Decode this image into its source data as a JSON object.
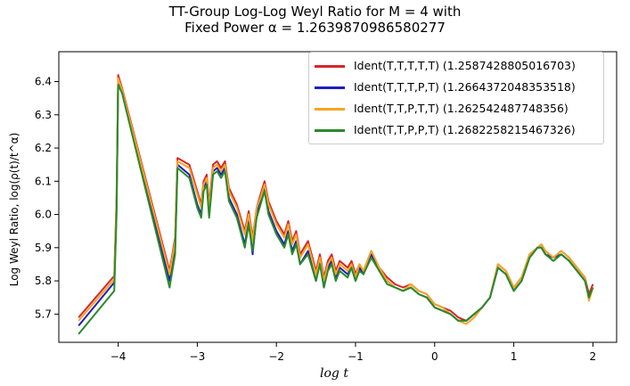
{
  "chart_data": {
    "type": "line",
    "title": "TT-Group Log-Log Weyl Ratio for M = 4 with",
    "subtitle": "Fixed Power α = 1.2639870986580277",
    "xlabel": "log t",
    "ylabel": "Log Weyl Ratio, log(ρ(t)/t^α)",
    "xlim": [
      -4.75,
      2.3
    ],
    "ylim": [
      5.615,
      6.49
    ],
    "xticks": [
      "−4",
      "−3",
      "−2",
      "−1",
      "0",
      "1",
      "2"
    ],
    "xtick_values": [
      -4,
      -3,
      -2,
      -1,
      0,
      1,
      2
    ],
    "yticks": [
      "5.7",
      "5.8",
      "5.9",
      "6.0",
      "6.1",
      "6.2",
      "6.3",
      "6.4"
    ],
    "ytick_values": [
      5.7,
      5.8,
      5.9,
      6.0,
      6.1,
      6.2,
      6.3,
      6.4
    ],
    "grid": false,
    "legend_position": "top-right",
    "series": [
      {
        "name": "Ident(T,T,T,T,T) (1.2587428805016703)",
        "color": "#d62728",
        "points": [
          [
            -4.5,
            5.69
          ],
          [
            -4.05,
            5.815
          ],
          [
            -4.02,
            6.05
          ],
          [
            -4.0,
            6.42
          ],
          [
            -3.95,
            6.38
          ],
          [
            -3.35,
            5.83
          ],
          [
            -3.28,
            5.93
          ],
          [
            -3.25,
            6.17
          ],
          [
            -3.1,
            6.15
          ],
          [
            -3.0,
            6.07
          ],
          [
            -2.95,
            6.03
          ],
          [
            -2.92,
            6.1
          ],
          [
            -2.88,
            6.12
          ],
          [
            -2.85,
            6.03
          ],
          [
            -2.8,
            6.15
          ],
          [
            -2.75,
            6.16
          ],
          [
            -2.7,
            6.14
          ],
          [
            -2.65,
            6.16
          ],
          [
            -2.6,
            6.08
          ],
          [
            -2.5,
            6.03
          ],
          [
            -2.4,
            5.95
          ],
          [
            -2.35,
            6.01
          ],
          [
            -2.3,
            5.93
          ],
          [
            -2.25,
            6.02
          ],
          [
            -2.2,
            6.06
          ],
          [
            -2.15,
            6.1
          ],
          [
            -2.1,
            6.04
          ],
          [
            -2.0,
            5.98
          ],
          [
            -1.9,
            5.94
          ],
          [
            -1.85,
            5.98
          ],
          [
            -1.8,
            5.92
          ],
          [
            -1.75,
            5.95
          ],
          [
            -1.7,
            5.88
          ],
          [
            -1.6,
            5.92
          ],
          [
            -1.5,
            5.83
          ],
          [
            -1.45,
            5.88
          ],
          [
            -1.4,
            5.81
          ],
          [
            -1.35,
            5.86
          ],
          [
            -1.3,
            5.88
          ],
          [
            -1.25,
            5.83
          ],
          [
            -1.2,
            5.86
          ],
          [
            -1.1,
            5.84
          ],
          [
            -1.05,
            5.86
          ],
          [
            -1.0,
            5.82
          ],
          [
            -0.95,
            5.85
          ],
          [
            -0.9,
            5.83
          ],
          [
            -0.8,
            5.89
          ],
          [
            -0.7,
            5.84
          ],
          [
            -0.6,
            5.81
          ],
          [
            -0.5,
            5.79
          ],
          [
            -0.4,
            5.78
          ],
          [
            -0.3,
            5.79
          ],
          [
            -0.2,
            5.77
          ],
          [
            -0.1,
            5.76
          ],
          [
            0.0,
            5.73
          ],
          [
            0.1,
            5.72
          ],
          [
            0.2,
            5.71
          ],
          [
            0.3,
            5.69
          ],
          [
            0.4,
            5.68
          ],
          [
            0.5,
            5.7
          ],
          [
            0.6,
            5.72
          ],
          [
            0.7,
            5.75
          ],
          [
            0.8,
            5.85
          ],
          [
            0.9,
            5.83
          ],
          [
            1.0,
            5.78
          ],
          [
            1.1,
            5.81
          ],
          [
            1.2,
            5.88
          ],
          [
            1.3,
            5.9
          ],
          [
            1.35,
            5.91
          ],
          [
            1.4,
            5.89
          ],
          [
            1.5,
            5.87
          ],
          [
            1.6,
            5.89
          ],
          [
            1.7,
            5.87
          ],
          [
            1.8,
            5.84
          ],
          [
            1.9,
            5.81
          ],
          [
            1.95,
            5.76
          ],
          [
            2.0,
            5.79
          ]
        ]
      },
      {
        "name": "Ident(T,T,T,P,T) (1.2664372048353518)",
        "color": "#1f1fbf",
        "points": [
          [
            -4.5,
            5.665
          ],
          [
            -4.05,
            5.795
          ],
          [
            -4.02,
            6.02
          ],
          [
            -4.0,
            6.4
          ],
          [
            -3.95,
            6.37
          ],
          [
            -3.35,
            5.8
          ],
          [
            -3.28,
            5.9
          ],
          [
            -3.25,
            6.15
          ],
          [
            -3.1,
            6.12
          ],
          [
            -3.0,
            6.03
          ],
          [
            -2.95,
            6.0
          ],
          [
            -2.92,
            6.08
          ],
          [
            -2.88,
            6.1
          ],
          [
            -2.85,
            6.0
          ],
          [
            -2.8,
            6.13
          ],
          [
            -2.75,
            6.14
          ],
          [
            -2.7,
            6.12
          ],
          [
            -2.65,
            6.14
          ],
          [
            -2.6,
            6.05
          ],
          [
            -2.5,
            6.0
          ],
          [
            -2.4,
            5.91
          ],
          [
            -2.35,
            5.98
          ],
          [
            -2.3,
            5.88
          ],
          [
            -2.25,
            6.0
          ],
          [
            -2.2,
            6.04
          ],
          [
            -2.15,
            6.08
          ],
          [
            -2.1,
            6.01
          ],
          [
            -2.0,
            5.95
          ],
          [
            -1.9,
            5.91
          ],
          [
            -1.85,
            5.95
          ],
          [
            -1.8,
            5.89
          ],
          [
            -1.75,
            5.92
          ],
          [
            -1.7,
            5.85
          ],
          [
            -1.6,
            5.89
          ],
          [
            -1.5,
            5.8
          ],
          [
            -1.45,
            5.86
          ],
          [
            -1.4,
            5.78
          ],
          [
            -1.35,
            5.84
          ],
          [
            -1.3,
            5.86
          ],
          [
            -1.25,
            5.81
          ],
          [
            -1.2,
            5.84
          ],
          [
            -1.1,
            5.82
          ],
          [
            -1.05,
            5.84
          ],
          [
            -1.0,
            5.8
          ],
          [
            -0.95,
            5.84
          ],
          [
            -0.9,
            5.82
          ],
          [
            -0.8,
            5.88
          ],
          [
            -0.7,
            5.83
          ],
          [
            -0.6,
            5.8
          ],
          [
            -0.5,
            5.78
          ],
          [
            -0.4,
            5.77
          ],
          [
            -0.3,
            5.78
          ],
          [
            -0.2,
            5.76
          ],
          [
            -0.1,
            5.75
          ],
          [
            0.0,
            5.72
          ],
          [
            0.1,
            5.71
          ],
          [
            0.2,
            5.7
          ],
          [
            0.3,
            5.68
          ],
          [
            0.4,
            5.68
          ],
          [
            0.5,
            5.7
          ],
          [
            0.6,
            5.72
          ],
          [
            0.7,
            5.75
          ],
          [
            0.8,
            5.84
          ],
          [
            0.9,
            5.82
          ],
          [
            1.0,
            5.77
          ],
          [
            1.1,
            5.8
          ],
          [
            1.2,
            5.87
          ],
          [
            1.3,
            5.9
          ],
          [
            1.35,
            5.9
          ],
          [
            1.4,
            5.88
          ],
          [
            1.5,
            5.87
          ],
          [
            1.6,
            5.88
          ],
          [
            1.7,
            5.86
          ],
          [
            1.8,
            5.83
          ],
          [
            1.9,
            5.8
          ],
          [
            1.95,
            5.75
          ],
          [
            2.0,
            5.78
          ]
        ]
      },
      {
        "name": "Ident(T,T,P,T,T) (1.262542487748356)",
        "color": "#f5a623",
        "points": [
          [
            -4.5,
            5.68
          ],
          [
            -4.05,
            5.805
          ],
          [
            -4.02,
            6.04
          ],
          [
            -4.0,
            6.41
          ],
          [
            -3.95,
            6.375
          ],
          [
            -3.35,
            5.82
          ],
          [
            -3.28,
            5.92
          ],
          [
            -3.25,
            6.16
          ],
          [
            -3.1,
            6.14
          ],
          [
            -3.0,
            6.06
          ],
          [
            -2.95,
            6.02
          ],
          [
            -2.92,
            6.09
          ],
          [
            -2.88,
            6.11
          ],
          [
            -2.85,
            6.02
          ],
          [
            -2.8,
            6.14
          ],
          [
            -2.75,
            6.15
          ],
          [
            -2.7,
            6.13
          ],
          [
            -2.65,
            6.15
          ],
          [
            -2.6,
            6.07
          ],
          [
            -2.5,
            6.02
          ],
          [
            -2.4,
            5.94
          ],
          [
            -2.35,
            6.0
          ],
          [
            -2.3,
            5.92
          ],
          [
            -2.25,
            6.02
          ],
          [
            -2.2,
            6.05
          ],
          [
            -2.15,
            6.09
          ],
          [
            -2.1,
            6.03
          ],
          [
            -2.0,
            5.97
          ],
          [
            -1.9,
            5.93
          ],
          [
            -1.85,
            5.97
          ],
          [
            -1.8,
            5.91
          ],
          [
            -1.75,
            5.94
          ],
          [
            -1.7,
            5.87
          ],
          [
            -1.6,
            5.91
          ],
          [
            -1.5,
            5.82
          ],
          [
            -1.45,
            5.87
          ],
          [
            -1.4,
            5.8
          ],
          [
            -1.35,
            5.85
          ],
          [
            -1.3,
            5.87
          ],
          [
            -1.25,
            5.82
          ],
          [
            -1.2,
            5.85
          ],
          [
            -1.1,
            5.83
          ],
          [
            -1.05,
            5.85
          ],
          [
            -1.0,
            5.81
          ],
          [
            -0.95,
            5.85
          ],
          [
            -0.9,
            5.83
          ],
          [
            -0.8,
            5.89
          ],
          [
            -0.7,
            5.84
          ],
          [
            -0.6,
            5.8
          ],
          [
            -0.5,
            5.78
          ],
          [
            -0.4,
            5.77
          ],
          [
            -0.3,
            5.79
          ],
          [
            -0.2,
            5.77
          ],
          [
            -0.1,
            5.76
          ],
          [
            0.0,
            5.73
          ],
          [
            0.1,
            5.72
          ],
          [
            0.2,
            5.7
          ],
          [
            0.3,
            5.68
          ],
          [
            0.4,
            5.67
          ],
          [
            0.5,
            5.69
          ],
          [
            0.6,
            5.72
          ],
          [
            0.7,
            5.75
          ],
          [
            0.8,
            5.85
          ],
          [
            0.9,
            5.83
          ],
          [
            1.0,
            5.78
          ],
          [
            1.1,
            5.81
          ],
          [
            1.2,
            5.88
          ],
          [
            1.3,
            5.9
          ],
          [
            1.35,
            5.91
          ],
          [
            1.4,
            5.89
          ],
          [
            1.5,
            5.87
          ],
          [
            1.6,
            5.89
          ],
          [
            1.7,
            5.87
          ],
          [
            1.8,
            5.84
          ],
          [
            1.9,
            5.81
          ],
          [
            1.95,
            5.74
          ],
          [
            2.0,
            5.78
          ]
        ]
      },
      {
        "name": "Ident(T,T,P,P,T) (1.2682258215467326)",
        "color": "#2a8a2a",
        "points": [
          [
            -4.5,
            5.64
          ],
          [
            -4.05,
            5.77
          ],
          [
            -4.02,
            6.0
          ],
          [
            -4.0,
            6.39
          ],
          [
            -3.95,
            6.365
          ],
          [
            -3.35,
            5.78
          ],
          [
            -3.28,
            5.88
          ],
          [
            -3.25,
            6.14
          ],
          [
            -3.1,
            6.11
          ],
          [
            -3.0,
            6.02
          ],
          [
            -2.95,
            5.99
          ],
          [
            -2.92,
            6.07
          ],
          [
            -2.88,
            6.09
          ],
          [
            -2.85,
            5.99
          ],
          [
            -2.8,
            6.12
          ],
          [
            -2.75,
            6.13
          ],
          [
            -2.7,
            6.11
          ],
          [
            -2.65,
            6.13
          ],
          [
            -2.6,
            6.04
          ],
          [
            -2.5,
            5.99
          ],
          [
            -2.4,
            5.9
          ],
          [
            -2.35,
            5.97
          ],
          [
            -2.3,
            5.89
          ],
          [
            -2.25,
            5.99
          ],
          [
            -2.2,
            6.03
          ],
          [
            -2.15,
            6.07
          ],
          [
            -2.1,
            6.0
          ],
          [
            -2.0,
            5.94
          ],
          [
            -1.9,
            5.9
          ],
          [
            -1.85,
            5.94
          ],
          [
            -1.8,
            5.88
          ],
          [
            -1.75,
            5.91
          ],
          [
            -1.7,
            5.85
          ],
          [
            -1.6,
            5.88
          ],
          [
            -1.5,
            5.8
          ],
          [
            -1.45,
            5.85
          ],
          [
            -1.4,
            5.78
          ],
          [
            -1.35,
            5.83
          ],
          [
            -1.3,
            5.85
          ],
          [
            -1.25,
            5.8
          ],
          [
            -1.2,
            5.83
          ],
          [
            -1.1,
            5.81
          ],
          [
            -1.05,
            5.84
          ],
          [
            -1.0,
            5.8
          ],
          [
            -0.95,
            5.83
          ],
          [
            -0.9,
            5.82
          ],
          [
            -0.8,
            5.87
          ],
          [
            -0.7,
            5.83
          ],
          [
            -0.6,
            5.79
          ],
          [
            -0.5,
            5.78
          ],
          [
            -0.4,
            5.77
          ],
          [
            -0.3,
            5.78
          ],
          [
            -0.2,
            5.76
          ],
          [
            -0.1,
            5.75
          ],
          [
            0.0,
            5.72
          ],
          [
            0.1,
            5.71
          ],
          [
            0.2,
            5.7
          ],
          [
            0.3,
            5.68
          ],
          [
            0.4,
            5.68
          ],
          [
            0.5,
            5.7
          ],
          [
            0.6,
            5.72
          ],
          [
            0.7,
            5.75
          ],
          [
            0.8,
            5.84
          ],
          [
            0.9,
            5.82
          ],
          [
            1.0,
            5.77
          ],
          [
            1.1,
            5.8
          ],
          [
            1.2,
            5.87
          ],
          [
            1.3,
            5.9
          ],
          [
            1.35,
            5.9
          ],
          [
            1.4,
            5.88
          ],
          [
            1.5,
            5.86
          ],
          [
            1.6,
            5.88
          ],
          [
            1.7,
            5.86
          ],
          [
            1.8,
            5.83
          ],
          [
            1.9,
            5.8
          ],
          [
            1.95,
            5.75
          ],
          [
            2.0,
            5.78
          ]
        ]
      }
    ]
  }
}
